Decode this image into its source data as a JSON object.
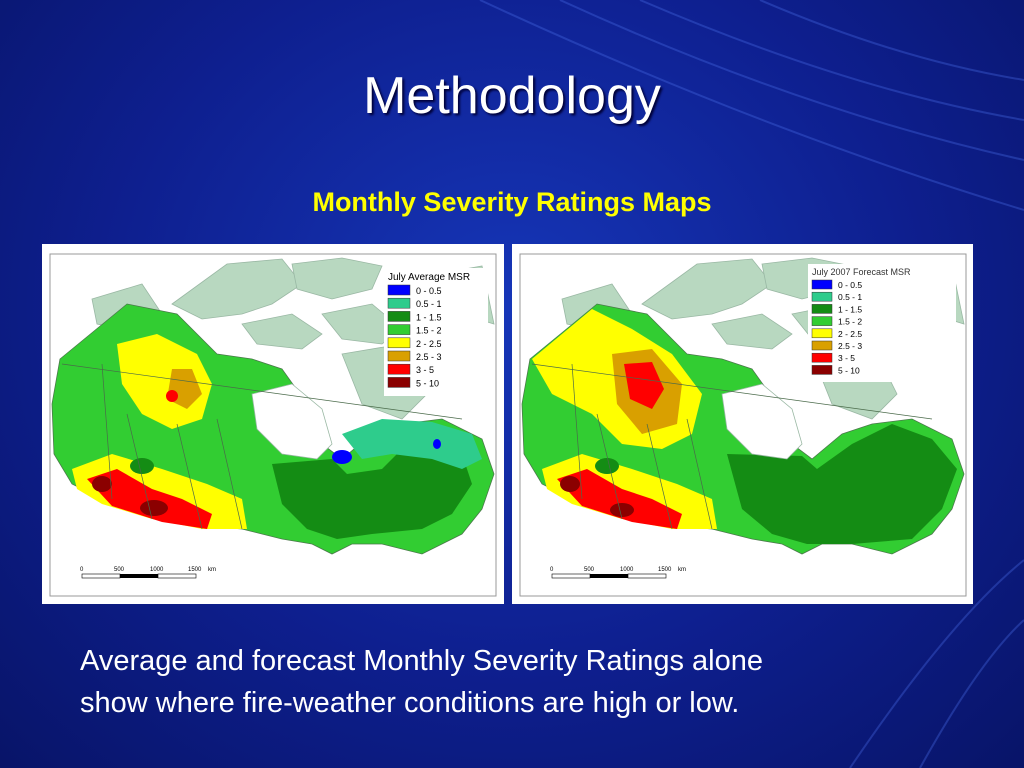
{
  "slide": {
    "title": "Methodology",
    "subtitle": "Monthly Severity Ratings Maps",
    "caption_lines": [
      "Average and forecast Monthly Severity Ratings alone",
      "show where fire-weather conditions are high or low."
    ]
  },
  "colors": {
    "background": "#0e1f8f",
    "title": "#ffffff",
    "subtitle": "#ffff00",
    "water": "#ffffff",
    "land_no_data": "#b8d8c0"
  },
  "maps": [
    {
      "legend_title": "July Average MSR",
      "legend": [
        {
          "label": "0 - 0.5",
          "color": "#0000ff"
        },
        {
          "label": "0.5 - 1",
          "color": "#2ecc8c"
        },
        {
          "label": "1 - 1.5",
          "color": "#148c14"
        },
        {
          "label": "1.5 - 2",
          "color": "#32cd32"
        },
        {
          "label": "2 - 2.5",
          "color": "#ffff00"
        },
        {
          "label": "2.5 - 3",
          "color": "#d9a000"
        },
        {
          "label": "3 - 5",
          "color": "#ff0000"
        },
        {
          "label": "5 - 10",
          "color": "#8b0000"
        }
      ],
      "scale": {
        "ticks": [
          "0",
          "500",
          "1000",
          "1500"
        ],
        "unit": "km"
      }
    },
    {
      "legend_title": "July 2007 Forecast MSR",
      "legend": [
        {
          "label": "0 - 0.5",
          "color": "#0000ff"
        },
        {
          "label": "0.5 - 1",
          "color": "#2ecc8c"
        },
        {
          "label": "1 - 1.5",
          "color": "#148c14"
        },
        {
          "label": "1.5 - 2",
          "color": "#32cd32"
        },
        {
          "label": "2 - 2.5",
          "color": "#ffff00"
        },
        {
          "label": "2.5 - 3",
          "color": "#d9a000"
        },
        {
          "label": "3 - 5",
          "color": "#ff0000"
        },
        {
          "label": "5 - 10",
          "color": "#8b0000"
        }
      ],
      "scale": {
        "ticks": [
          "0",
          "500",
          "1000",
          "1500"
        ],
        "unit": "km"
      }
    }
  ]
}
